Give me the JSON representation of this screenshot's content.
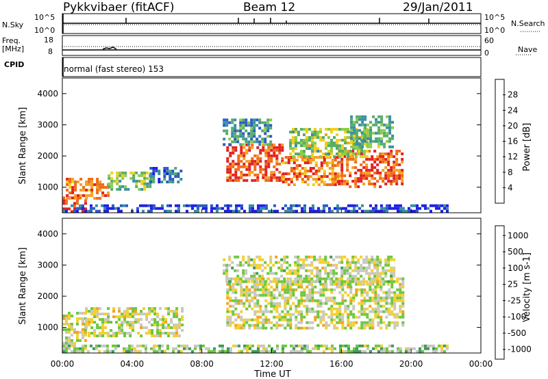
{
  "header": {
    "site_title": "Pykkvibaer (fitACF)",
    "beam": "Beam 12",
    "date": "29/Jan/2011"
  },
  "strips": {
    "nsky_label": "N.Sky",
    "nsky_ticks": [
      "10^5",
      "10^0"
    ],
    "nsearch_label": "N.Search",
    "nsearch_ticks": [
      "10^5",
      "10^0"
    ],
    "freq_label_1": "Freq.",
    "freq_label_2": "[MHz]",
    "freq_ticks": [
      "18",
      "8"
    ],
    "nave_label": "Nave",
    "nave_ticks": [
      "60",
      "0"
    ],
    "cpid_label": "CPID",
    "cpid_text": "normal (fast stereo) 153"
  },
  "chart_data": [
    {
      "type": "heatmap",
      "name": "power-panel",
      "ylabel": "Slant Range [km]",
      "yticks": [
        1000,
        2000,
        3000,
        4000
      ],
      "ylim": [
        180,
        4500
      ],
      "xlim": [
        0,
        24
      ],
      "colorbar_label": "Power [dB]",
      "colorbar_ticks": [
        "4",
        "8",
        "12",
        "16",
        "20",
        "24",
        "28"
      ],
      "colorbar_colors": [
        "#1f1fe6",
        "#2a5cc4",
        "#3a8fa0",
        "#57ad6a",
        "#8fcc4a",
        "#f0d020",
        "#f4a020",
        "#ef6a18",
        "#e32020"
      ],
      "scatter_regions": [
        {
          "t": [
            0.0,
            1.3
          ],
          "r": [
            200,
            700
          ],
          "level": 0.9
        },
        {
          "t": [
            0.2,
            2.6
          ],
          "r": [
            600,
            1300
          ],
          "level": 0.78
        },
        {
          "t": [
            2.6,
            5.0
          ],
          "r": [
            900,
            1500
          ],
          "level": 0.45
        },
        {
          "t": [
            5.0,
            6.8
          ],
          "r": [
            1200,
            1650
          ],
          "level": 0.25
        },
        {
          "t": [
            9.4,
            12.6
          ],
          "r": [
            1200,
            2400
          ],
          "level": 0.88
        },
        {
          "t": [
            12.6,
            15.8
          ],
          "r": [
            1100,
            2000
          ],
          "level": 0.8
        },
        {
          "t": [
            15.8,
            19.5
          ],
          "r": [
            1000,
            2200
          ],
          "level": 0.85
        },
        {
          "t": [
            13.0,
            17.5
          ],
          "r": [
            2000,
            2900
          ],
          "level": 0.5
        },
        {
          "t": [
            9.2,
            12.0
          ],
          "r": [
            2400,
            3200
          ],
          "level": 0.3
        },
        {
          "t": [
            16.5,
            19.0
          ],
          "r": [
            2300,
            3300
          ],
          "level": 0.4
        },
        {
          "t": [
            0.0,
            22.0
          ],
          "r": [
            200,
            450
          ],
          "level": 0.12
        }
      ]
    },
    {
      "type": "heatmap",
      "name": "velocity-panel",
      "ylabel": "Slant Range [km]",
      "yticks": [
        1000,
        2000,
        3000,
        4000
      ],
      "ylim": [
        180,
        4500
      ],
      "xlim": [
        0,
        24
      ],
      "colorbar_label": "Velocity [m s-1]",
      "colorbar_ticks": [
        "1000",
        "500",
        "100",
        "25",
        "-25",
        "-100",
        "-500",
        "-1000"
      ],
      "colorbar_colors": [
        "#1a2fb8",
        "#2b6ea8",
        "#3e9a5a",
        "#6cc83c",
        "#c8c8c0",
        "#f2d030",
        "#f4a020",
        "#ef6a18",
        "#e02020"
      ],
      "xticks": [
        "00:00",
        "04:00",
        "08:00",
        "12:00",
        "16:00",
        "20:00",
        "00:00"
      ],
      "xlabel": "Time UT",
      "scatter_regions": [
        {
          "t": [
            0.0,
            1.3
          ],
          "r": [
            300,
            1500
          ],
          "level": 0.55
        },
        {
          "t": [
            1.3,
            6.8
          ],
          "r": [
            700,
            1650
          ],
          "level": 0.52
        },
        {
          "t": [
            9.4,
            19.5
          ],
          "r": [
            1000,
            2600
          ],
          "level": 0.52
        },
        {
          "t": [
            9.2,
            19.0
          ],
          "r": [
            2400,
            3300
          ],
          "level": 0.5
        },
        {
          "t": [
            0.0,
            22.0
          ],
          "r": [
            200,
            450
          ],
          "level": 0.42
        }
      ]
    }
  ]
}
